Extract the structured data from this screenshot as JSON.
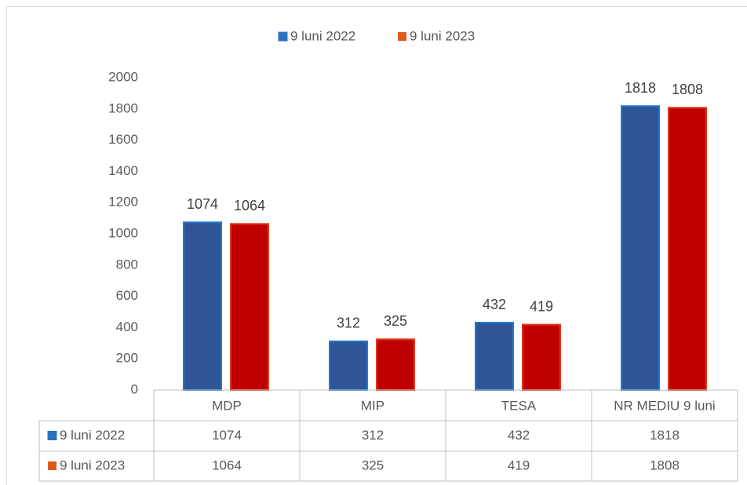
{
  "chart_data": {
    "type": "bar",
    "categories": [
      "MDP",
      "MIP",
      "TESA",
      "NR MEDIU 9 luni"
    ],
    "series": [
      {
        "name": "9 luni 2022",
        "color": "#2f5597",
        "values": [
          1074,
          312,
          432,
          1818
        ]
      },
      {
        "name": "9 luni 2023",
        "color": "#c00000",
        "values": [
          1064,
          325,
          419,
          1808
        ]
      }
    ],
    "ylim": [
      0,
      2000
    ],
    "yticks": [
      0,
      200,
      400,
      600,
      800,
      1000,
      1200,
      1400,
      1600,
      1800,
      2000
    ],
    "legend": "top",
    "grid": false,
    "data_table": true
  }
}
